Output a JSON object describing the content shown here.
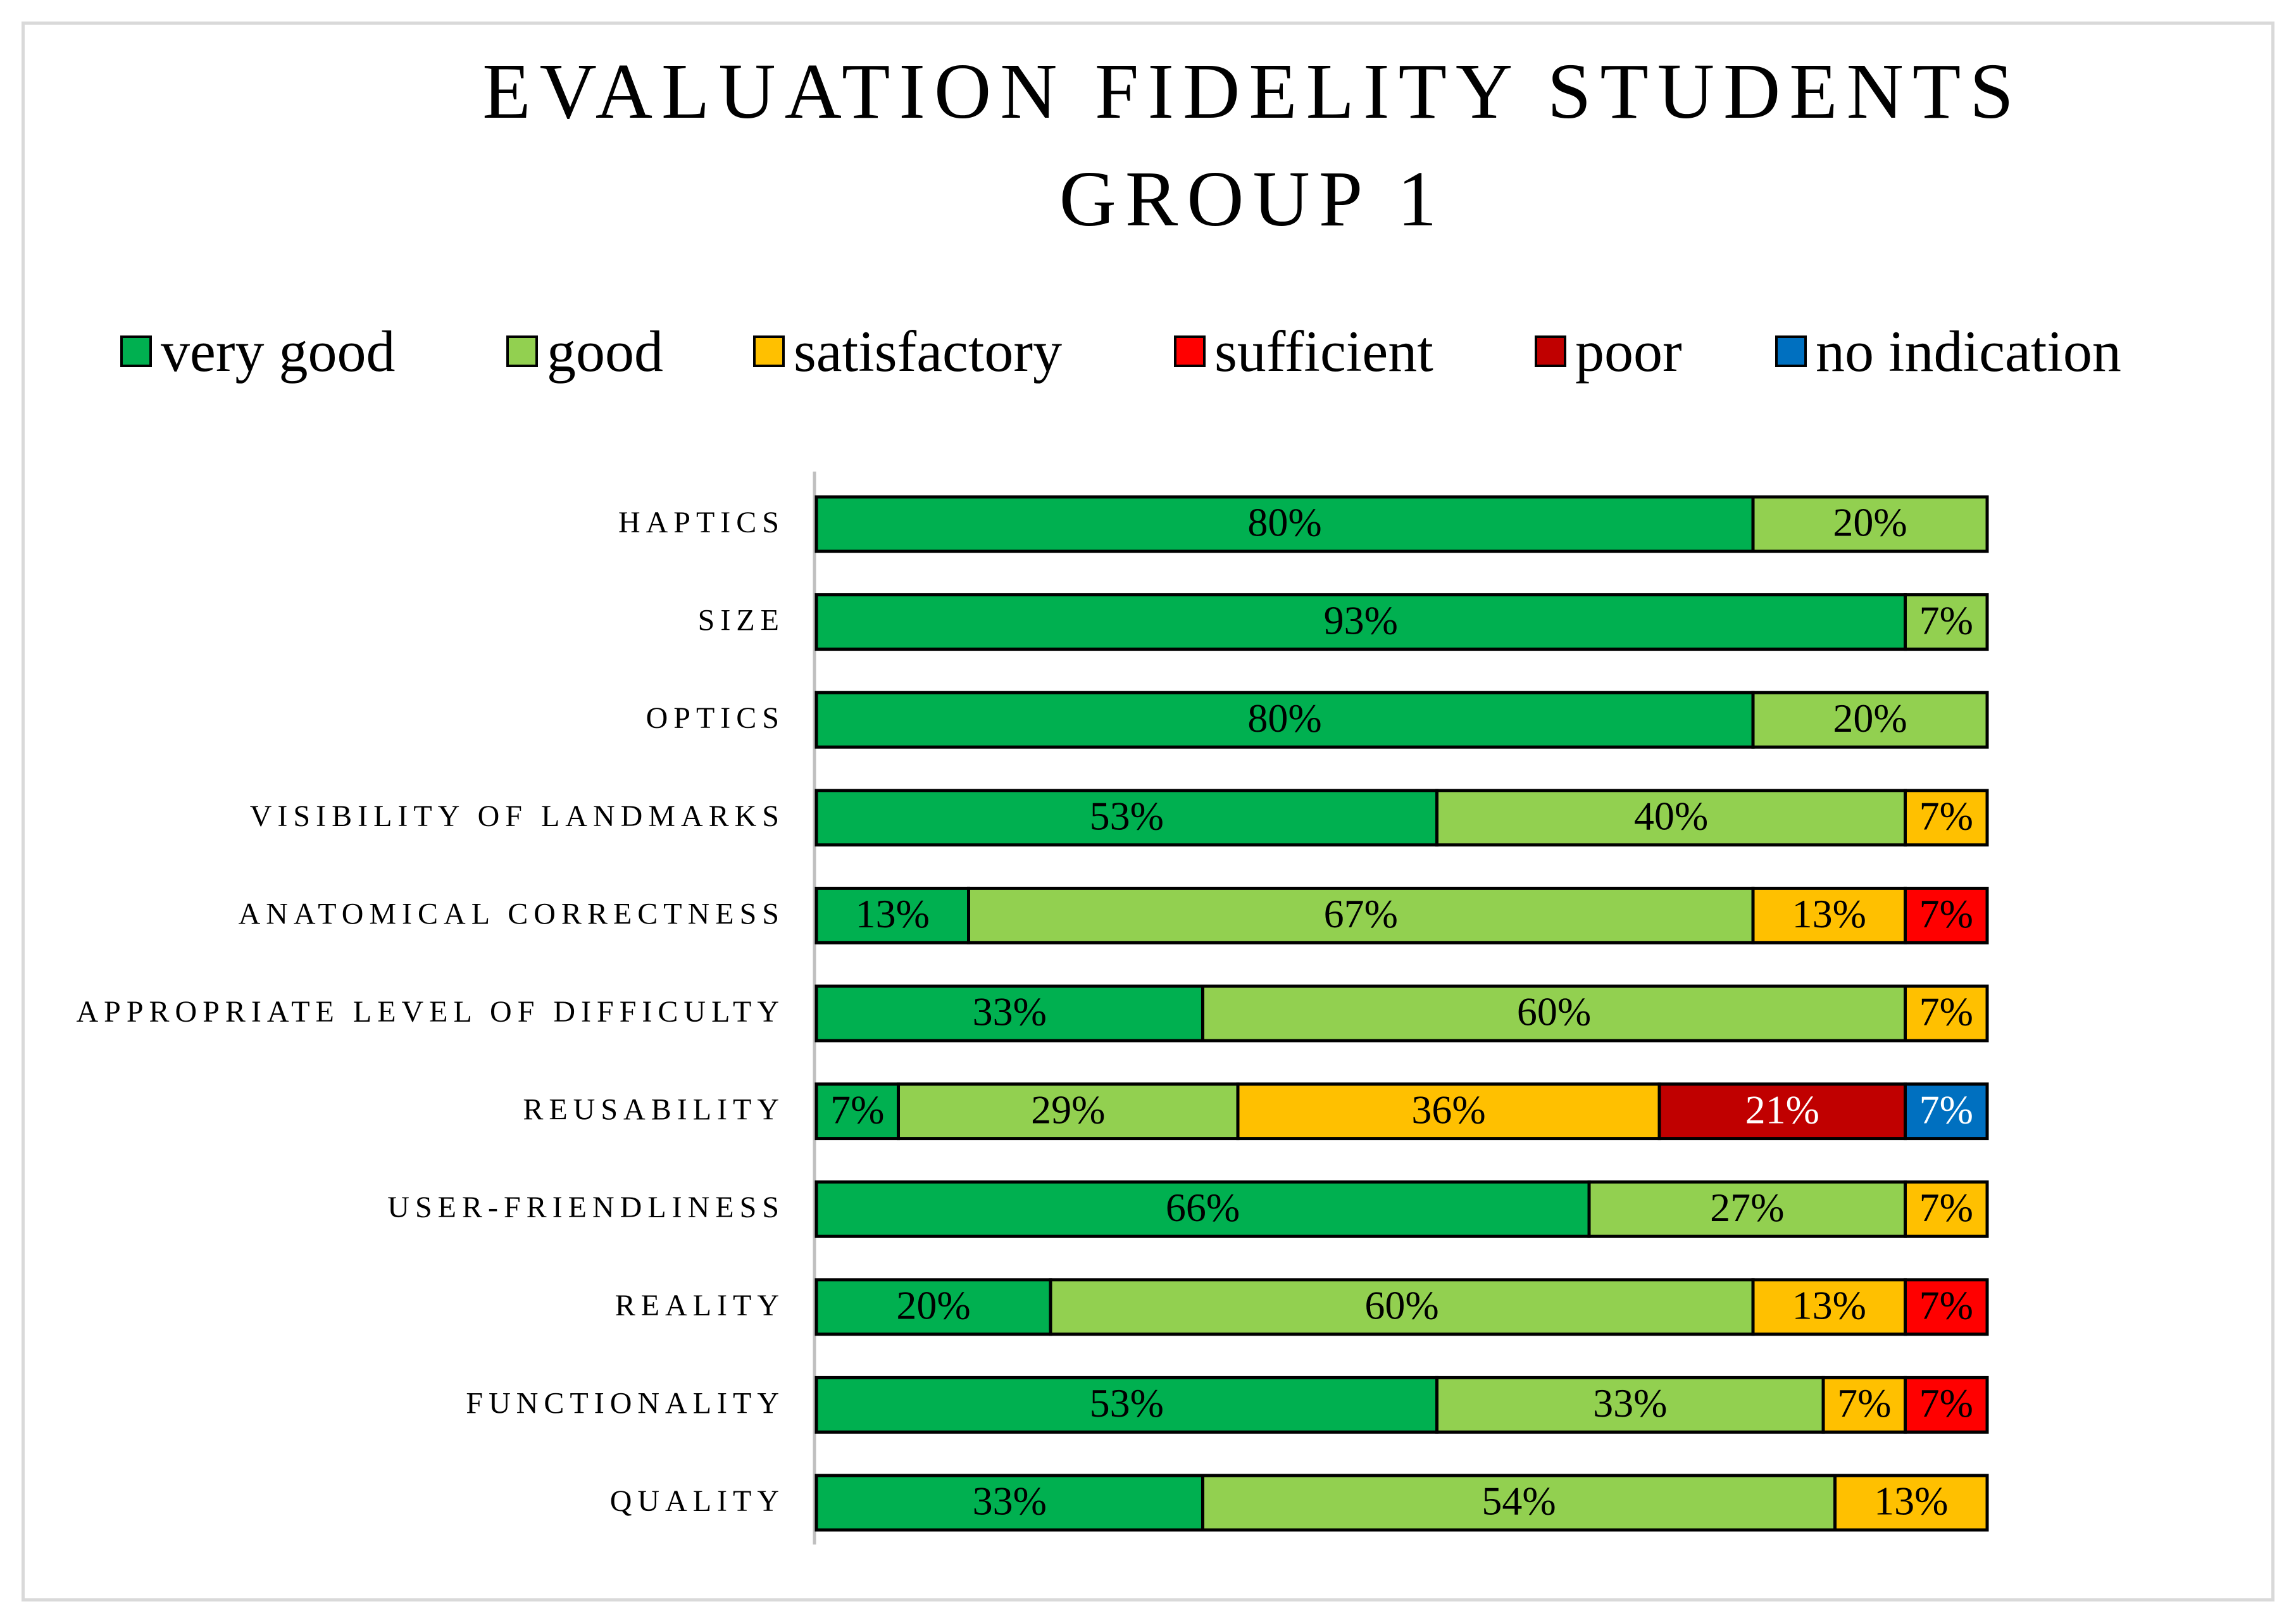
{
  "chart_data": {
    "type": "bar",
    "orientation": "horizontal",
    "stacked": true,
    "title": "EVALUATION FIDELITY STUDENTS\nGROUP 1",
    "legend_position": "top",
    "categories": [
      "HAPTICS",
      "SIZE",
      "OPTICS",
      "VISIBILITY OF LANDMARKS",
      "ANATOMICAL CORRECTNESS",
      "APPROPRIATE LEVEL OF DIFFICULTY",
      "REUSABILITY",
      "USER-FRIENDLINESS",
      "REALITY",
      "FUNCTIONALITY",
      "QUALITY"
    ],
    "series": [
      {
        "name": "very good",
        "color": "#00b050",
        "values": [
          80,
          93,
          80,
          53,
          13,
          33,
          7,
          66,
          20,
          53,
          33
        ]
      },
      {
        "name": "good",
        "color": "#92d050",
        "values": [
          20,
          7,
          20,
          40,
          67,
          60,
          29,
          27,
          60,
          33,
          54
        ]
      },
      {
        "name": "satisfactory",
        "color": "#ffc000",
        "values": [
          0,
          0,
          0,
          7,
          13,
          7,
          36,
          7,
          13,
          7,
          13
        ]
      },
      {
        "name": "sufficient",
        "color": "#ff0000",
        "values": [
          0,
          0,
          0,
          0,
          7,
          0,
          0,
          0,
          7,
          7,
          0
        ]
      },
      {
        "name": "poor",
        "color": "#c00000",
        "values": [
          0,
          0,
          0,
          0,
          0,
          0,
          21,
          0,
          0,
          0,
          0
        ]
      },
      {
        "name": "no indication",
        "color": "#0070c0",
        "values": [
          0,
          0,
          0,
          0,
          0,
          0,
          7,
          0,
          0,
          0,
          0
        ]
      }
    ],
    "value_suffix": "%",
    "white_label_series": [
      "poor",
      "no indication"
    ]
  }
}
